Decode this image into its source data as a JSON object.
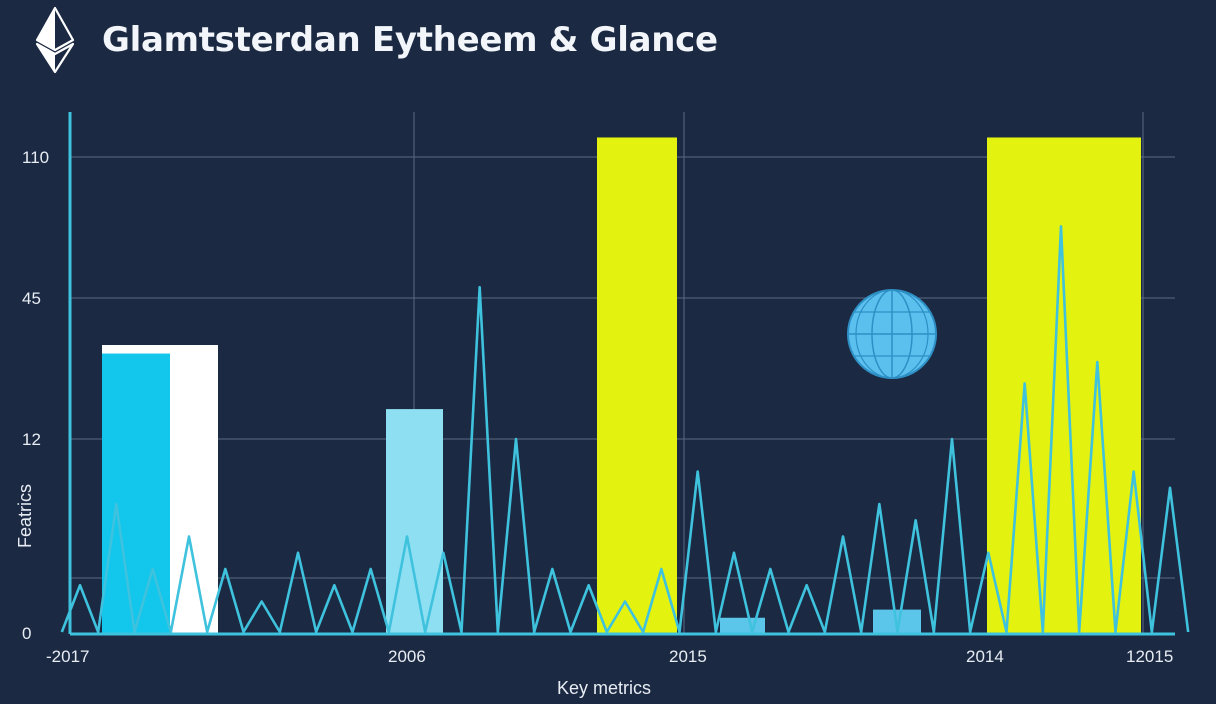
{
  "header": {
    "title": "Glamtsterdan Eytheem & Glance",
    "logo_icon": "ethereum-diamond-icon"
  },
  "chart_data": {
    "type": "bar",
    "title": "Glamtsterdan Eytheem & Glance",
    "xlabel": "Key metrics",
    "ylabel": "Featrics",
    "y_ticks": [
      "0",
      "12",
      "45",
      "110"
    ],
    "x_ticks": [
      "-2017",
      "2006",
      "2015",
      "2014",
      "12015"
    ],
    "grid": true,
    "series": [
      {
        "kind": "bar",
        "values": [
          {
            "value": 34,
            "color": "#ffffff"
          },
          {
            "value": 32,
            "color": "#12c6ec"
          },
          {
            "value": 19,
            "color": "#8fdff2"
          },
          {
            "value": 119,
            "color": "#e4f20f"
          },
          {
            "value": 1,
            "color": "#5cc5ea"
          },
          {
            "value": 1.5,
            "color": "#5cc5ea"
          },
          {
            "value": 119,
            "color": "#e4f20f"
          }
        ]
      },
      {
        "kind": "line",
        "color": "#3fc2dd",
        "values": [
          3,
          8,
          4,
          6,
          4,
          2,
          5,
          3,
          4,
          6,
          5,
          50,
          12,
          4,
          3,
          2,
          4,
          10,
          5,
          4,
          3,
          6,
          8,
          7,
          12,
          5,
          25,
          78,
          30,
          10,
          9
        ]
      }
    ],
    "colors": {
      "background": "#1b2942",
      "grid": "#5b6b83",
      "axis": "#3fc2dd",
      "bar_yellow": "#e4f20f",
      "bar_cyan": "#12c6ec",
      "bar_white": "#ffffff",
      "globe": "#5cc0ef"
    },
    "annotations": [
      "globe-icon"
    ]
  }
}
